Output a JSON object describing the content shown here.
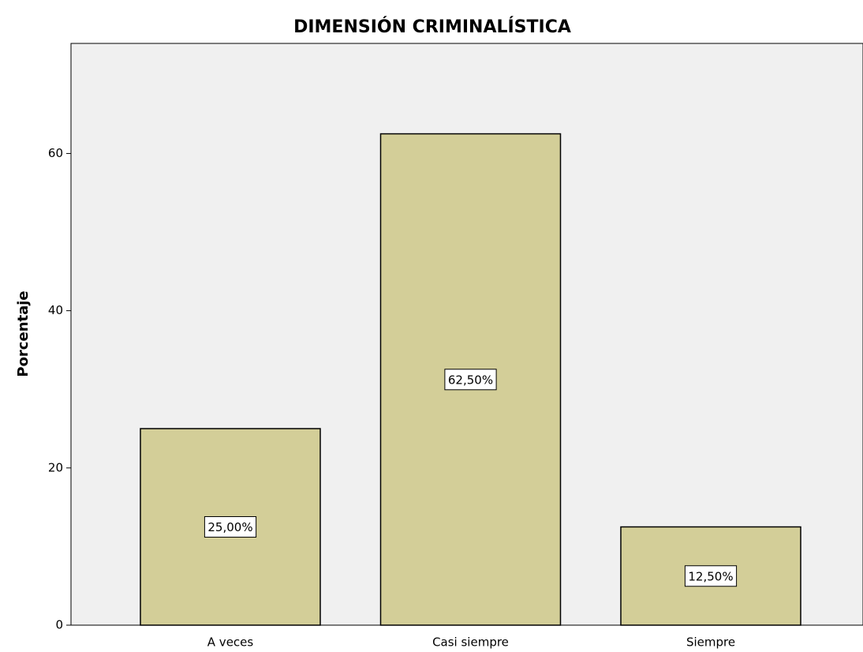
{
  "chart_data": {
    "type": "bar",
    "title": "DIMENSIÓN CRIMINALÍSTICA",
    "y_label": "Porcentaje",
    "categories": [
      "A veces",
      "Casi siempre",
      "Siempre"
    ],
    "values": [
      25,
      62.5,
      12.5
    ],
    "value_labels": [
      "25,00%",
      "62,50%",
      "12,50%"
    ],
    "color": "#d3ce98",
    "ylim": [
      0,
      74
    ],
    "yticks": [
      0,
      20,
      40,
      60
    ],
    "grid": false
  }
}
